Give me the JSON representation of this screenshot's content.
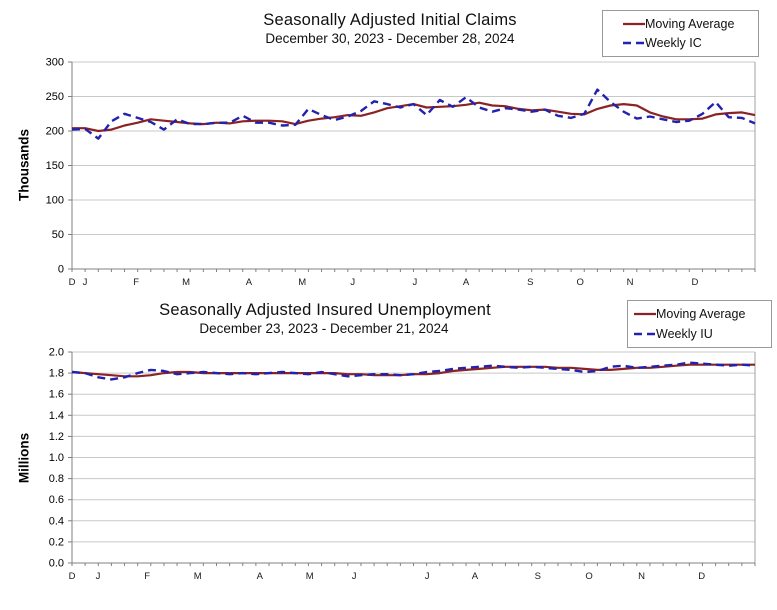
{
  "page": {
    "background": "#ffffff",
    "accent_colors": {
      "moving_average": "#8B2323",
      "weekly": "#2222AE",
      "grid": "#C8C8C8",
      "axis": "#808080"
    }
  },
  "chart_data": [
    {
      "type": "line",
      "title": "Seasonally Adjusted Initial Claims",
      "subtitle": "December 30, 2023 - December 28, 2024",
      "ylabel": "Thousands",
      "ylim": [
        0,
        300
      ],
      "ytick_step": 50,
      "ytick_labels": [
        "0",
        "50",
        "100",
        "150",
        "200",
        "250",
        "300"
      ],
      "month_labels": [
        "D",
        "J",
        "F",
        "M",
        "A",
        "M",
        "J",
        "J",
        "A",
        "S",
        "O",
        "N",
        "D"
      ],
      "month_fractions": [
        0,
        0.019,
        0.094,
        0.167,
        0.259,
        0.337,
        0.411,
        0.502,
        0.577,
        0.671,
        0.744,
        0.817,
        0.912
      ],
      "weeks": 53,
      "grid": true,
      "legend": {
        "position": "top-right",
        "entries": [
          "Moving Average",
          "Weekly IC"
        ]
      },
      "series": [
        {
          "name": "Moving Average",
          "color": "#8B2323",
          "style": "solid",
          "values": [
            204,
            204,
            200,
            202,
            208,
            212,
            217,
            215,
            213,
            211,
            210,
            212,
            211,
            214,
            215,
            215,
            214,
            210,
            215,
            218,
            220,
            223,
            222,
            227,
            233,
            236,
            239,
            234,
            235,
            236,
            238,
            241,
            237,
            236,
            232,
            230,
            231,
            228,
            225,
            224,
            232,
            237,
            239,
            237,
            227,
            221,
            217,
            217,
            218,
            224,
            226,
            227,
            223
          ]
        },
        {
          "name": "Weekly IC",
          "color": "#2222AE",
          "style": "dashed",
          "values": [
            202,
            203,
            189,
            214,
            225,
            219,
            213,
            202,
            217,
            210,
            210,
            212,
            212,
            222,
            212,
            212,
            208,
            209,
            232,
            223,
            216,
            221,
            229,
            243,
            239,
            234,
            239,
            223,
            245,
            235,
            249,
            234,
            228,
            233,
            231,
            228,
            231,
            222,
            219,
            225,
            260,
            242,
            228,
            218,
            221,
            217,
            213,
            215,
            225,
            242,
            220,
            219,
            211
          ]
        }
      ]
    },
    {
      "type": "line",
      "title": "Seasonally Adjusted Insured Unemployment",
      "subtitle": "December 23, 2023 - December 21, 2024",
      "ylabel": "Millions",
      "ylim": [
        0,
        2.0
      ],
      "ytick_step": 0.2,
      "ytick_labels": [
        "0.0",
        "0.2",
        "0.4",
        "0.6",
        "0.8",
        "1.0",
        "1.2",
        "1.4",
        "1.6",
        "1.8",
        "2.0"
      ],
      "month_labels": [
        "D",
        "J",
        "F",
        "M",
        "A",
        "M",
        "J",
        "J",
        "A",
        "S",
        "O",
        "N",
        "D"
      ],
      "month_fractions": [
        0,
        0.038,
        0.11,
        0.184,
        0.275,
        0.348,
        0.413,
        0.52,
        0.59,
        0.682,
        0.757,
        0.834,
        0.922
      ],
      "weeks": 53,
      "grid": true,
      "legend": {
        "position": "top-right",
        "entries": [
          "Moving Average",
          "Weekly IU"
        ]
      },
      "series": [
        {
          "name": "Moving Average",
          "color": "#8B2323",
          "style": "solid",
          "values": [
            1.81,
            1.8,
            1.79,
            1.78,
            1.77,
            1.77,
            1.78,
            1.8,
            1.81,
            1.81,
            1.8,
            1.8,
            1.8,
            1.8,
            1.8,
            1.8,
            1.8,
            1.8,
            1.8,
            1.8,
            1.8,
            1.79,
            1.79,
            1.78,
            1.78,
            1.78,
            1.79,
            1.79,
            1.8,
            1.82,
            1.83,
            1.84,
            1.85,
            1.86,
            1.86,
            1.86,
            1.86,
            1.85,
            1.85,
            1.84,
            1.83,
            1.83,
            1.84,
            1.85,
            1.85,
            1.86,
            1.87,
            1.88,
            1.88,
            1.88,
            1.88,
            1.88,
            1.88
          ]
        },
        {
          "name": "Weekly IU",
          "color": "#2222AE",
          "style": "dashed",
          "values": [
            1.81,
            1.8,
            1.76,
            1.74,
            1.76,
            1.8,
            1.83,
            1.82,
            1.79,
            1.8,
            1.81,
            1.8,
            1.79,
            1.8,
            1.79,
            1.8,
            1.81,
            1.8,
            1.79,
            1.81,
            1.79,
            1.77,
            1.78,
            1.79,
            1.79,
            1.78,
            1.79,
            1.81,
            1.82,
            1.84,
            1.85,
            1.86,
            1.87,
            1.86,
            1.85,
            1.86,
            1.85,
            1.84,
            1.83,
            1.81,
            1.82,
            1.86,
            1.87,
            1.85,
            1.86,
            1.87,
            1.88,
            1.9,
            1.89,
            1.88,
            1.87,
            1.88,
            1.87
          ]
        }
      ]
    }
  ]
}
